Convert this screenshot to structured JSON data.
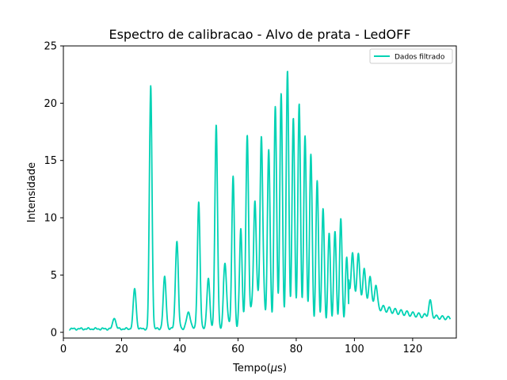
{
  "chart_data": {
    "type": "line",
    "title": "Espectro de calibracao - Alvo de prata - LedOFF",
    "xlabel_prefix": "Tempo(",
    "xlabel_mu": "μ",
    "xlabel_suffix": "s)",
    "ylabel": "Intensidade",
    "xlim": [
      0,
      135
    ],
    "ylim": [
      -0.5,
      25
    ],
    "xticks": [
      0,
      20,
      40,
      60,
      80,
      100,
      120
    ],
    "yticks": [
      0,
      5,
      10,
      15,
      20,
      25
    ],
    "grid": false,
    "legend_position": "top-right",
    "series": [
      {
        "name": "Dados filtrado",
        "color": "#00d2b4",
        "baseline": 0.3,
        "decay_start": 98,
        "decay_tau": 18,
        "decay_amp": 2.3,
        "decay_floor": 0.9,
        "peaks": [
          {
            "x": 17.5,
            "y": 1.3,
            "w": 0.5
          },
          {
            "x": 24.5,
            "y": 3.8,
            "w": 0.5
          },
          {
            "x": 30.0,
            "y": 21.6,
            "w": 0.45
          },
          {
            "x": 34.8,
            "y": 4.8,
            "w": 0.5
          },
          {
            "x": 39.0,
            "y": 8.0,
            "w": 0.5
          },
          {
            "x": 43.0,
            "y": 1.7,
            "w": 0.7
          },
          {
            "x": 46.5,
            "y": 11.4,
            "w": 0.45
          },
          {
            "x": 49.8,
            "y": 4.7,
            "w": 0.5
          },
          {
            "x": 52.5,
            "y": 18.3,
            "w": 0.45
          },
          {
            "x": 55.5,
            "y": 6.0,
            "w": 0.5
          },
          {
            "x": 58.3,
            "y": 12.7,
            "w": 0.45
          },
          {
            "x": 61.0,
            "y": 8.1,
            "w": 0.45
          },
          {
            "x": 63.2,
            "y": 16.4,
            "w": 0.45
          },
          {
            "x": 65.8,
            "y": 11.4,
            "w": 0.45
          },
          {
            "x": 68.0,
            "y": 16.8,
            "w": 0.45
          },
          {
            "x": 70.5,
            "y": 14.0,
            "w": 0.45
          },
          {
            "x": 72.8,
            "y": 17.0,
            "w": 0.45
          },
          {
            "x": 74.8,
            "y": 18.0,
            "w": 0.45
          },
          {
            "x": 77.0,
            "y": 19.7,
            "w": 0.45
          },
          {
            "x": 79.0,
            "y": 15.5,
            "w": 0.45
          },
          {
            "x": 81.0,
            "y": 16.8,
            "w": 0.45
          },
          {
            "x": 83.0,
            "y": 14.2,
            "w": 0.45
          },
          {
            "x": 85.0,
            "y": 12.8,
            "w": 0.45
          },
          {
            "x": 87.2,
            "y": 10.4,
            "w": 0.45
          },
          {
            "x": 89.2,
            "y": 8.2,
            "w": 0.45
          },
          {
            "x": 91.3,
            "y": 6.4,
            "w": 0.45
          },
          {
            "x": 93.3,
            "y": 6.9,
            "w": 0.45
          },
          {
            "x": 95.3,
            "y": 8.2,
            "w": 0.45
          },
          {
            "x": 97.3,
            "y": 5.1,
            "w": 0.45
          },
          {
            "x": 99.3,
            "y": 4.2,
            "w": 0.45
          },
          {
            "x": 101.3,
            "y": 4.4,
            "w": 0.45
          },
          {
            "x": 103.3,
            "y": 3.3,
            "w": 0.45
          },
          {
            "x": 105.3,
            "y": 2.8,
            "w": 0.45
          },
          {
            "x": 107.3,
            "y": 2.2,
            "w": 0.45
          },
          {
            "x": 126.0,
            "y": 1.6,
            "w": 0.5
          }
        ],
        "valleys": [
          {
            "x": 29.0,
            "y": -0.25,
            "w": 0.25
          },
          {
            "x": 29.8,
            "y": -0.4,
            "w": 0.12
          },
          {
            "x": 31.0,
            "y": 0.0,
            "w": 0.2
          },
          {
            "x": 39.8,
            "y": -0.2,
            "w": 0.2
          },
          {
            "x": 52.3,
            "y": -0.2,
            "w": 0.2
          },
          {
            "x": 60.5,
            "y": -0.1,
            "w": 0.2
          }
        ]
      }
    ]
  }
}
